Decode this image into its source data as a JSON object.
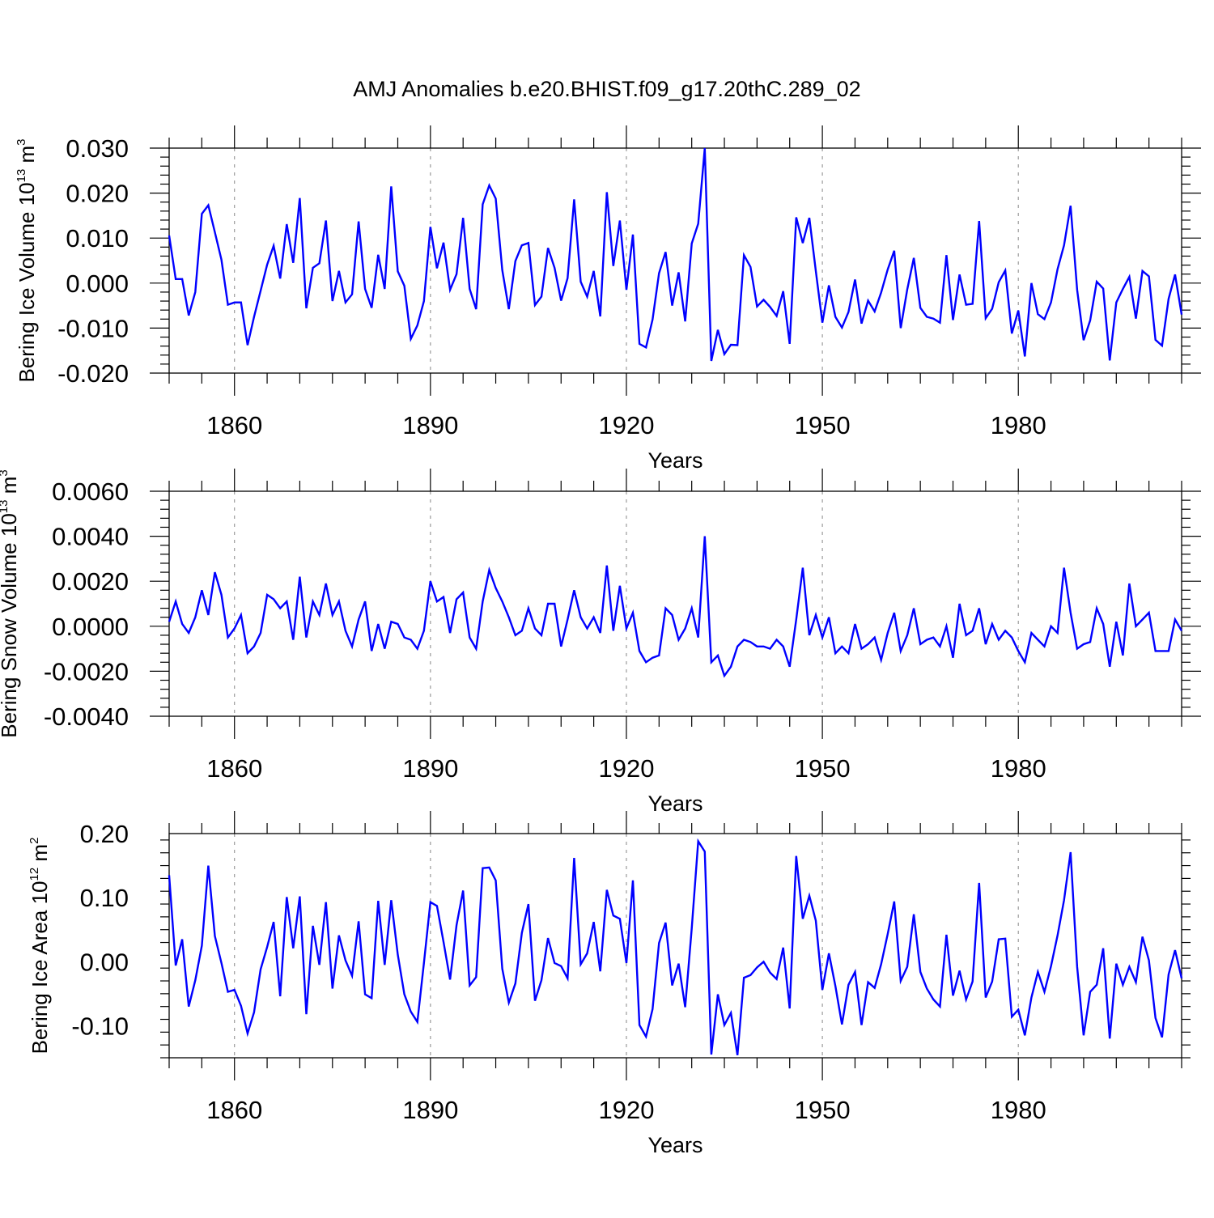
{
  "figure": {
    "title": "AMJ Anomalies b.e20.BHIST.f09_g17.20thC.289_02"
  },
  "chart_data": [
    {
      "type": "line",
      "title": "AMJ Anomalies b.e20.BHIST.f09_g17.20thC.289_02",
      "xlabel": "Years",
      "ylabel_main": "Bering Ice Volume 10",
      "ylabel_exp": "13",
      "ylabel_unit": " m",
      "ylabel_unit_exp": "3",
      "xlim": [
        1850,
        2005
      ],
      "ylim": [
        -0.02,
        0.03
      ],
      "xticks": [
        "1860",
        "1890",
        "1920",
        "1950",
        "1980"
      ],
      "yticks": [
        "0.030",
        "0.020",
        "0.010",
        "0.000",
        "-0.010",
        "-0.020"
      ],
      "ytick_values": [
        0.03,
        0.02,
        0.01,
        0.0,
        -0.01,
        -0.02
      ],
      "line_color": "#0000ff",
      "series": [
        {
          "name": "Bering Ice Volume",
          "x_start": 1850,
          "values": [
            0.0106,
            0.0009,
            0.0009,
            -0.0072,
            -0.002,
            0.0154,
            0.0173,
            0.0113,
            0.0052,
            -0.0048,
            -0.0043,
            -0.0043,
            -0.0138,
            -0.0075,
            -0.0017,
            0.0041,
            0.0083,
            0.001,
            0.0131,
            0.0045,
            0.0189,
            -0.0056,
            0.0034,
            0.0044,
            0.0139,
            -0.004,
            0.0027,
            -0.0043,
            -0.0025,
            0.0137,
            -0.0013,
            -0.0055,
            0.0063,
            -0.0013,
            0.0215,
            0.0026,
            -0.0006,
            -0.0124,
            -0.0094,
            -0.004,
            0.0125,
            0.0033,
            0.009,
            -0.0015,
            0.002,
            0.0145,
            -0.0013,
            -0.0058,
            0.0175,
            0.0217,
            0.0188,
            0.0029,
            -0.0058,
            0.0049,
            0.0084,
            0.0089,
            -0.0049,
            -0.003,
            0.0078,
            0.0034,
            -0.0039,
            0.0011,
            0.0186,
            0.0003,
            -0.003,
            0.0027,
            -0.0074,
            0.0202,
            0.0038,
            0.0139,
            -0.0015,
            0.0108,
            -0.0135,
            -0.0143,
            -0.0081,
            0.0022,
            0.0069,
            -0.005,
            0.0024,
            -0.0085,
            0.0088,
            0.0132,
            0.0301,
            -0.0173,
            -0.0104,
            -0.0158,
            -0.0137,
            -0.0138,
            0.0062,
            0.0036,
            -0.0052,
            -0.0037,
            -0.0053,
            -0.0073,
            -0.0018,
            -0.0135,
            0.0146,
            0.0089,
            0.0145,
            0.0027,
            -0.0088,
            -0.0005,
            -0.0075,
            -0.0099,
            -0.0064,
            0.0008,
            -0.009,
            -0.0039,
            -0.0063,
            -0.0021,
            0.003,
            0.0072,
            -0.01,
            -0.0014,
            0.0056,
            -0.0055,
            -0.0075,
            -0.0079,
            -0.0088,
            0.0062,
            -0.0082,
            0.0019,
            -0.0048,
            -0.0046,
            0.0138,
            -0.0078,
            -0.0057,
            0.0002,
            0.0028,
            -0.0112,
            -0.0061,
            -0.0163,
            0.0,
            -0.0069,
            -0.008,
            -0.0043,
            0.0031,
            0.0084,
            0.0172,
            -0.0015,
            -0.0127,
            -0.0083,
            0.0003,
            -0.0012,
            -0.0172,
            -0.0043,
            -0.0013,
            0.0014,
            -0.0079,
            0.0027,
            0.0015,
            -0.0126,
            -0.0139,
            -0.0035,
            0.0019,
            -0.007
          ]
        }
      ]
    },
    {
      "type": "line",
      "xlabel": "Years",
      "ylabel_main": "Bering Snow Volume 10",
      "ylabel_exp": "13",
      "ylabel_unit": " m",
      "ylabel_unit_exp": "3",
      "xlim": [
        1850,
        2005
      ],
      "ylim": [
        -0.004,
        0.006
      ],
      "xticks": [
        "1860",
        "1890",
        "1920",
        "1950",
        "1980"
      ],
      "yticks": [
        "0.0060",
        "0.0040",
        "0.0020",
        "0.0000",
        "-0.0020",
        "-0.0040"
      ],
      "ytick_values": [
        0.006,
        0.004,
        0.002,
        0.0,
        -0.002,
        -0.004
      ],
      "line_color": "#0000ff",
      "series": [
        {
          "name": "Bering Snow Volume",
          "x_start": 1850,
          "values": [
            0.0002,
            0.0011,
            0.0001,
            -0.0003,
            0.0004,
            0.0016,
            0.0005,
            0.0024,
            0.0014,
            -0.0005,
            -0.0001,
            0.0005,
            -0.0012,
            -0.0009,
            -0.0003,
            0.0014,
            0.0012,
            0.0008,
            0.0011,
            -0.0006,
            0.0022,
            -0.0005,
            0.0011,
            0.0005,
            0.0019,
            0.0005,
            0.0011,
            -0.0002,
            -0.0009,
            0.0003,
            0.0011,
            -0.0011,
            0.0001,
            -0.001,
            0.0002,
            0.0001,
            -0.0005,
            -0.0006,
            -0.001,
            -0.0002,
            0.002,
            0.0011,
            0.0013,
            -0.0003,
            0.0012,
            0.0015,
            -0.0005,
            -0.001,
            0.0011,
            0.0025,
            0.0017,
            0.0011,
            0.0004,
            -0.0004,
            -0.0002,
            0.0008,
            -0.0001,
            -0.0004,
            0.001,
            0.001,
            -0.0009,
            0.0003,
            0.0016,
            0.0004,
            -0.0001,
            0.0004,
            -0.0003,
            0.0027,
            -0.0002,
            0.0018,
            -0.0001,
            0.0006,
            -0.0011,
            -0.0016,
            -0.0014,
            -0.0013,
            0.0008,
            0.0005,
            -0.0006,
            -0.0001,
            0.0008,
            -0.0005,
            0.004,
            -0.0016,
            -0.0013,
            -0.0022,
            -0.0018,
            -0.0009,
            -0.0006,
            -0.0007,
            -0.0009,
            -0.0009,
            -0.001,
            -0.0006,
            -0.0009,
            -0.0018,
            0.0003,
            0.0026,
            -0.0004,
            0.0005,
            -0.0005,
            0.0004,
            -0.0012,
            -0.0009,
            -0.0012,
            0.0001,
            -0.001,
            -0.0008,
            -0.0005,
            -0.0015,
            -0.0003,
            0.0006,
            -0.0011,
            -0.0004,
            0.0008,
            -0.0008,
            -0.0006,
            -0.0005,
            -0.0009,
            0.0,
            -0.0014,
            0.001,
            -0.0004,
            -0.0002,
            0.0008,
            -0.0008,
            0.0001,
            -0.0006,
            -0.0002,
            -0.0005,
            -0.0011,
            -0.0016,
            -0.0003,
            -0.0006,
            -0.0009,
            0.0,
            -0.0003,
            0.0026,
            0.0006,
            -0.001,
            -0.0008,
            -0.0007,
            0.0008,
            0.0001,
            -0.0018,
            0.0002,
            -0.0013,
            0.0019,
            0.0,
            0.0003,
            0.0006,
            -0.0011,
            -0.0011,
            -0.0011,
            0.0003,
            -0.0002
          ]
        }
      ]
    },
    {
      "type": "line",
      "xlabel": "Years",
      "ylabel_main": "Bering Ice Area 10",
      "ylabel_exp": "12",
      "ylabel_unit": " m",
      "ylabel_unit_exp": "2",
      "xlim": [
        1850,
        2005
      ],
      "ylim": [
        -0.15,
        0.2
      ],
      "xticks": [
        "1860",
        "1890",
        "1920",
        "1950",
        "1980"
      ],
      "yticks": [
        "0.20",
        "0.10",
        "0.00",
        "-0.10"
      ],
      "ytick_values": [
        0.2,
        0.1,
        0.0,
        -0.1
      ],
      "line_color": "#0000ff",
      "series": [
        {
          "name": "Bering Ice Area",
          "x_start": 1850,
          "values": [
            0.135,
            -0.006,
            0.035,
            -0.07,
            -0.029,
            0.025,
            0.15,
            0.04,
            -0.002,
            -0.047,
            -0.044,
            -0.069,
            -0.112,
            -0.079,
            -0.012,
            0.023,
            0.062,
            -0.054,
            0.101,
            0.021,
            0.102,
            -0.082,
            0.056,
            -0.005,
            0.093,
            -0.042,
            0.041,
            0.002,
            -0.022,
            0.063,
            -0.051,
            -0.057,
            0.095,
            -0.005,
            0.096,
            0.011,
            -0.051,
            -0.078,
            -0.094,
            -0.002,
            0.093,
            0.087,
            0.031,
            -0.028,
            0.057,
            0.111,
            -0.037,
            -0.024,
            0.146,
            0.147,
            0.127,
            -0.011,
            -0.064,
            -0.034,
            0.045,
            0.09,
            -0.061,
            -0.029,
            0.037,
            -0.002,
            -0.007,
            -0.026,
            0.162,
            -0.004,
            0.013,
            0.062,
            -0.015,
            0.112,
            0.072,
            0.067,
            -0.002,
            0.127,
            -0.099,
            -0.117,
            -0.074,
            0.029,
            0.061,
            -0.037,
            -0.003,
            -0.071,
            0.052,
            0.188,
            0.172,
            -0.145,
            -0.051,
            -0.099,
            -0.08,
            -0.146,
            -0.025,
            -0.021,
            -0.009,
            0.0,
            -0.017,
            -0.027,
            0.022,
            -0.073,
            0.165,
            0.067,
            0.103,
            0.064,
            -0.044,
            0.013,
            -0.038,
            -0.098,
            -0.036,
            -0.016,
            -0.099,
            -0.032,
            -0.041,
            -0.004,
            0.043,
            0.094,
            -0.03,
            -0.008,
            0.074,
            -0.016,
            -0.042,
            -0.059,
            -0.07,
            0.042,
            -0.053,
            -0.014,
            -0.059,
            -0.031,
            0.123,
            -0.056,
            -0.031,
            0.035,
            0.036,
            -0.086,
            -0.075,
            -0.115,
            -0.056,
            -0.016,
            -0.047,
            -0.007,
            0.041,
            0.096,
            0.171,
            -0.008,
            -0.115,
            -0.047,
            -0.036,
            0.021,
            -0.12,
            -0.003,
            -0.036,
            -0.008,
            -0.032,
            0.039,
            0.002,
            -0.088,
            -0.118,
            -0.02,
            0.018,
            -0.026
          ]
        }
      ]
    }
  ]
}
